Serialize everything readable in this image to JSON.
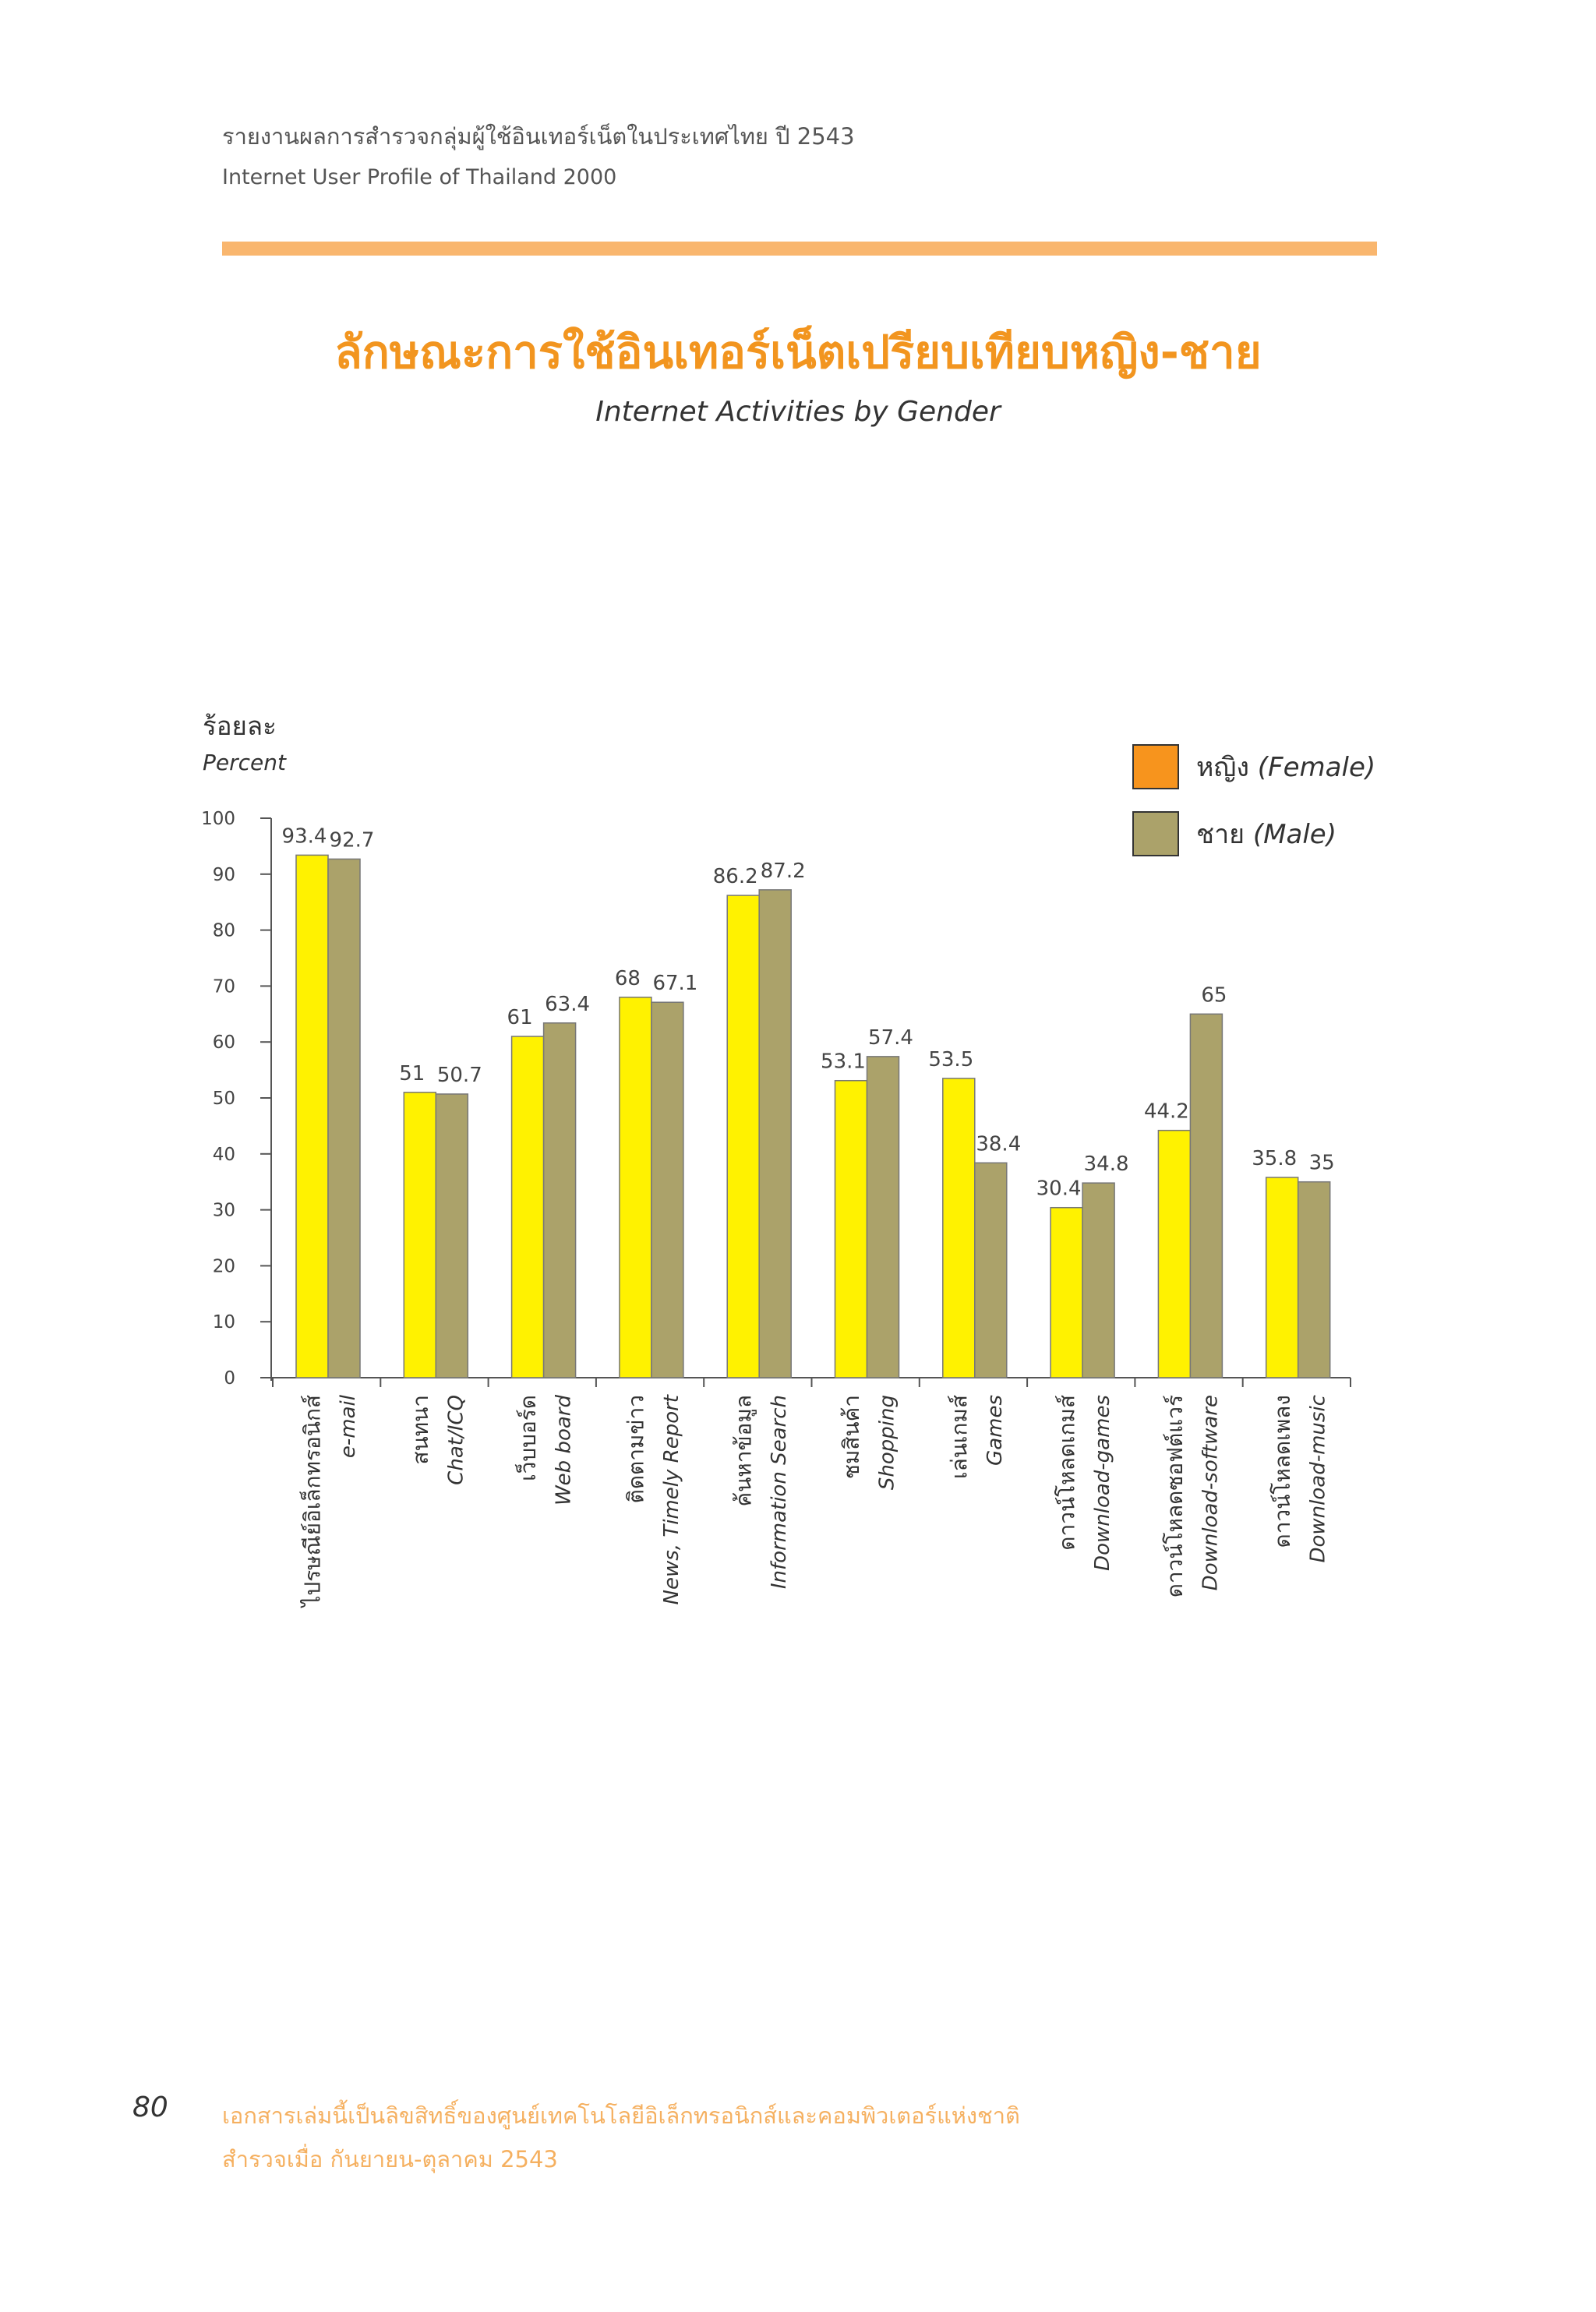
{
  "header": {
    "line_th": "รายงานผลการสำรวจกลุ่มผู้ใช้อินเทอร์เน็ตในประเทศไทย ปี 2543",
    "line_en": "Internet User Profile of Thailand 2000"
  },
  "title": {
    "th": "ลักษณะการใช้อินเทอร์เน็ตเปรียบเทียบหญิง-ชาย",
    "en": "Internet Activities by Gender"
  },
  "colors": {
    "accent_bar": "#F9B66E",
    "title": "#F2951F",
    "footer": "#F5B060",
    "female_bar": "#FFF200",
    "male_bar": "#ABA26A",
    "legend_female": "#F7941D",
    "legend_male": "#ABA26A"
  },
  "chart_data": {
    "type": "bar",
    "ylabel_th": "ร้อยละ",
    "ylabel_en": "Percent",
    "ylim": [
      0,
      100
    ],
    "yticks": [
      "0",
      "10",
      "20",
      "30",
      "40",
      "50",
      "60",
      "70",
      "80",
      "90",
      "100"
    ],
    "categories": [
      {
        "th": "ไปรษณีย์อิเล็กทรอนิกส์",
        "en": "e-mail"
      },
      {
        "th": "สนทนา",
        "en": "Chat/ICQ"
      },
      {
        "th": "เว็บบอร์ด",
        "en": "Web board"
      },
      {
        "th": "ติดตามข่าว",
        "en": "News, Timely Report"
      },
      {
        "th": "ค้นหาข้อมูล",
        "en": "Information Search"
      },
      {
        "th": "ชมสินค้า",
        "en": "Shopping"
      },
      {
        "th": "เล่นเกมส์",
        "en": "Games"
      },
      {
        "th": "ดาวน์โหลดเกมส์",
        "en": "Download-games"
      },
      {
        "th": "ดาวน์โหลดซอฟต์แวร์",
        "en": "Download-software"
      },
      {
        "th": "ดาวน์โหลดเพลง",
        "en": "Download-music"
      }
    ],
    "series": [
      {
        "name": "หญิง (Female)",
        "name_th": "หญิง",
        "name_en": "(Female)",
        "values": [
          93.4,
          51,
          61,
          68,
          86.2,
          53.1,
          53.5,
          30.4,
          44.2,
          35.8
        ]
      },
      {
        "name": "ชาย (Male)",
        "name_th": "ชาย",
        "name_en": "(Male)",
        "values": [
          92.7,
          50.7,
          63.4,
          67.1,
          87.2,
          57.4,
          38.4,
          34.8,
          65,
          35
        ]
      }
    ],
    "legend_position": "top-right"
  },
  "footer": {
    "page_number": "80",
    "line1": "เอกสารเล่มนี้เป็นลิขสิทธิ์ของศูนย์เทคโนโลยีอิเล็กทรอนิกส์และคอมพิวเตอร์แห่งชาติ",
    "line2": "สำรวจเมื่อ กันยายน-ตุลาคม 2543"
  }
}
